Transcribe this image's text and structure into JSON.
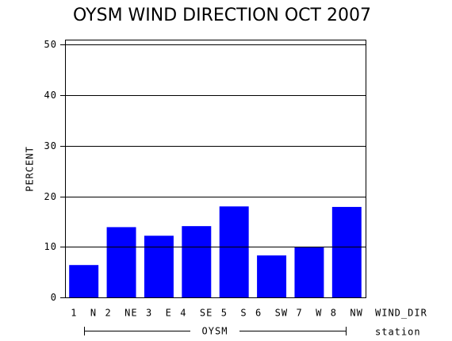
{
  "chart_data": {
    "type": "bar",
    "title": "OYSM WIND DIRECTION OCT 2007",
    "categories": [
      "1  N",
      "2  NE",
      "3  E",
      "4  SE",
      "5  S",
      "6  SW",
      "7  W",
      "8  NW"
    ],
    "values": [
      6.4,
      13.9,
      12.2,
      14.1,
      18.0,
      8.3,
      10.0,
      17.9
    ],
    "color": "#0000ff",
    "y_label": "PERCENT",
    "x_label": "WIND_DIR",
    "group_label": "OYSM",
    "group_axis_label": "station",
    "ylim": [
      0,
      51
    ],
    "yticks": [
      0,
      10,
      20,
      30,
      40,
      50
    ],
    "grid": true
  }
}
